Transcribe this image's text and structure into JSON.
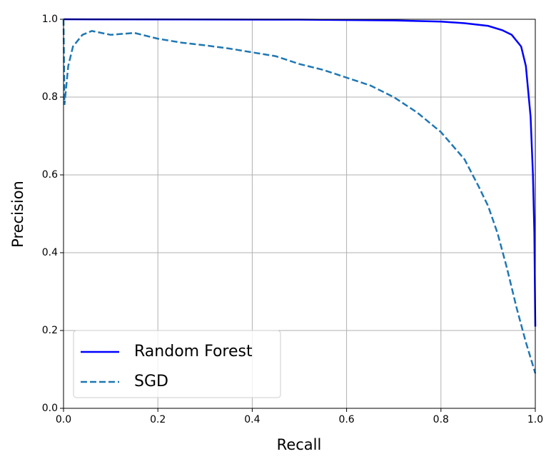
{
  "chart_data": {
    "type": "line",
    "xlabel": "Recall",
    "ylabel": "Precision",
    "xlim": [
      0,
      1
    ],
    "ylim": [
      0,
      1
    ],
    "xticks": [
      {
        "value": 0,
        "label": "0.0"
      },
      0.2,
      0.4,
      0.6,
      0.8,
      {
        "value": 1,
        "label": "1.0"
      }
    ],
    "yticks": [
      {
        "value": 0,
        "label": "0.0"
      },
      0.2,
      0.4,
      0.6,
      0.8,
      {
        "value": 1,
        "label": "1.0"
      }
    ],
    "grid": true,
    "legend": "lower left",
    "series": [
      {
        "name": "Random Forest",
        "color": "#0000ff",
        "linestyle": "solid",
        "x": [
          0,
          0.5,
          0.7,
          0.8,
          0.85,
          0.9,
          0.93,
          0.95,
          0.97,
          0.98,
          0.99,
          0.995,
          0.998,
          1.0
        ],
        "values": [
          1.0,
          0.999,
          0.997,
          0.994,
          0.99,
          0.983,
          0.972,
          0.96,
          0.93,
          0.88,
          0.75,
          0.6,
          0.45,
          0.21
        ]
      },
      {
        "name": "SGD",
        "color": "#1f77b4",
        "linestyle": "dashed",
        "x": [
          0,
          0.002,
          0.01,
          0.02,
          0.04,
          0.06,
          0.1,
          0.15,
          0.2,
          0.25,
          0.3,
          0.35,
          0.4,
          0.45,
          0.5,
          0.55,
          0.6,
          0.65,
          0.7,
          0.75,
          0.8,
          0.85,
          0.88,
          0.9,
          0.92,
          0.94,
          0.96,
          0.98,
          1.0
        ],
        "values": [
          1.0,
          0.78,
          0.88,
          0.93,
          0.96,
          0.97,
          0.96,
          0.965,
          0.95,
          0.94,
          0.933,
          0.925,
          0.915,
          0.905,
          0.885,
          0.87,
          0.85,
          0.83,
          0.8,
          0.76,
          0.71,
          0.64,
          0.57,
          0.52,
          0.45,
          0.36,
          0.26,
          0.17,
          0.09
        ]
      }
    ]
  }
}
